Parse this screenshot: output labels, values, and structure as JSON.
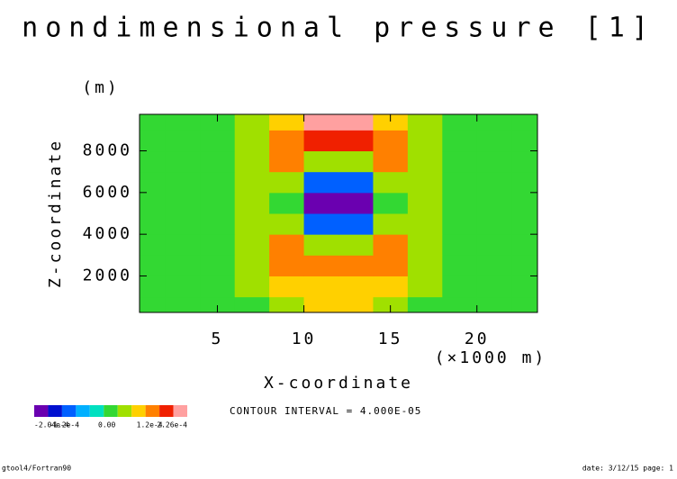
{
  "chart_data": {
    "type": "contour",
    "title": "nondimensional pressure [1]",
    "xlabel": "X-coordinate",
    "ylabel": "Z-coordinate",
    "xunit": "(×1000 m)",
    "yunit": "(m)",
    "xlim": [
      0.5,
      23.5
    ],
    "ylim": [
      250,
      9750
    ],
    "xticks": [
      5,
      10,
      15,
      20
    ],
    "yticks": [
      2000,
      4000,
      6000,
      8000
    ],
    "x": [
      1,
      3,
      5,
      7,
      9,
      11,
      13,
      15,
      17,
      19,
      21,
      23
    ],
    "y": [
      500,
      1500,
      2500,
      3500,
      4500,
      5500,
      6500,
      7500,
      8500,
      9500
    ],
    "z": [
      [
        2e-05,
        2e-05,
        2e-05,
        3e-05,
        6e-05,
        8e-05,
        8e-05,
        6e-05,
        3e-05,
        2e-05,
        2e-05,
        2e-05
      ],
      [
        2e-05,
        2e-05,
        2e-05,
        4e-05,
        9e-05,
        0.0001,
        0.0001,
        9e-05,
        4e-05,
        2e-05,
        2e-05,
        2e-05
      ],
      [
        2e-05,
        2e-05,
        3e-05,
        6e-05,
        0.00013,
        0.00015,
        0.00015,
        0.00013,
        6e-05,
        3e-05,
        2e-05,
        2e-05
      ],
      [
        2e-05,
        2e-05,
        3e-05,
        7e-05,
        0.00012,
        6e-05,
        6e-05,
        0.00012,
        7e-05,
        3e-05,
        2e-05,
        2e-05
      ],
      [
        2e-05,
        2e-05,
        3e-05,
        7e-05,
        6e-05,
        -0.0001,
        -0.0001,
        6e-05,
        7e-05,
        3e-05,
        2e-05,
        2e-05
      ],
      [
        2e-05,
        2e-05,
        3e-05,
        7e-05,
        3e-05,
        -0.00019,
        -0.00019,
        3e-05,
        7e-05,
        3e-05,
        2e-05,
        2e-05
      ],
      [
        2e-05,
        2e-05,
        3e-05,
        7e-05,
        6e-05,
        -0.0001,
        -0.0001,
        6e-05,
        7e-05,
        3e-05,
        2e-05,
        2e-05
      ],
      [
        2e-05,
        2e-05,
        3e-05,
        7e-05,
        0.00012,
        4e-05,
        4e-05,
        0.00012,
        7e-05,
        3e-05,
        2e-05,
        2e-05
      ],
      [
        2e-05,
        2e-05,
        3e-05,
        6e-05,
        0.00013,
        0.00017,
        0.00017,
        0.00013,
        6e-05,
        3e-05,
        2e-05,
        2e-05
      ],
      [
        2e-05,
        2e-05,
        2e-05,
        4e-05,
        9e-05,
        0.00021,
        0.00021,
        9e-05,
        4e-05,
        2e-05,
        2e-05,
        2e-05
      ]
    ],
    "levels": [
      -0.000204,
      -0.00016,
      -0.00012,
      -8e-05,
      -4e-05,
      0,
      4e-05,
      8e-05,
      0.00012,
      0.00016,
      0.0002,
      0.000226
    ],
    "colors": [
      "#6a00b0",
      "#0010d0",
      "#0060ff",
      "#00b0ff",
      "#00e0c0",
      "#33d833",
      "#a0e000",
      "#ffd000",
      "#ff8000",
      "#f02000",
      "#ffa0a0"
    ],
    "colorbar_ticks": [
      {
        "value": -0.000204,
        "label": "-2.04e-4"
      },
      {
        "value": -0.00012,
        "label": "-1.2e-4"
      },
      {
        "value": 0,
        "label": "0.00"
      },
      {
        "value": 0.00012,
        "label": "1.2e-4"
      },
      {
        "value": 0.000226,
        "label": "2.26e-4"
      }
    ],
    "contour_interval": "CONTOUR INTERVAL = 4.000E-05",
    "footer_left": "gtool4/Fortran90",
    "footer_right": "date: 3/12/15 page: 1"
  }
}
